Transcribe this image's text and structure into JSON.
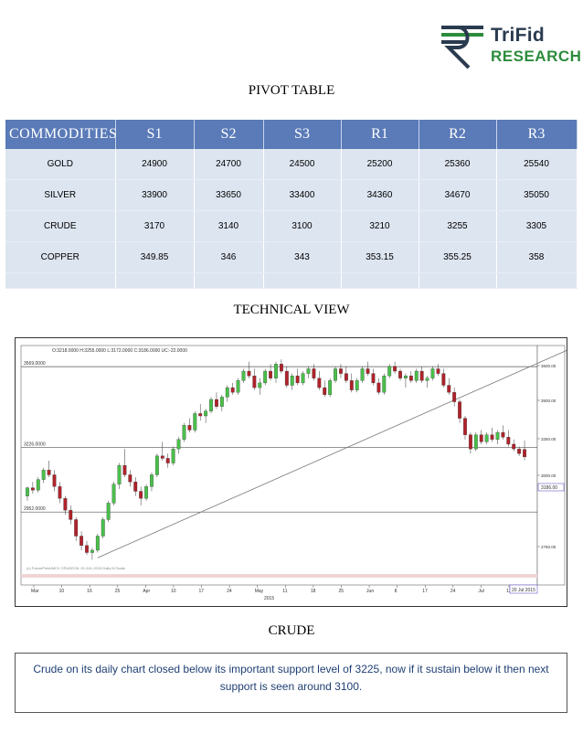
{
  "logo": {
    "line1": "TriFid",
    "line2": "RESEARCH"
  },
  "pivot_title": "PIVOT TABLE",
  "pivot": {
    "headers": [
      "COMMODITIES",
      "S1",
      "S2",
      "S3",
      "R1",
      "R2",
      "R3"
    ],
    "rows": [
      [
        "GOLD",
        "24900",
        "24700",
        "24500",
        "25200",
        "25360",
        "25540"
      ],
      [
        "SILVER",
        "33900",
        "33650",
        "33400",
        "34360",
        "34670",
        "35050"
      ],
      [
        "CRUDE",
        "3170",
        "3140",
        "3100",
        "3210",
        "3255",
        "3305"
      ],
      [
        "COPPER",
        "349.85",
        "346",
        "343",
        "353.15",
        "355.25",
        "358"
      ]
    ]
  },
  "technical_title": "TECHNICAL VIEW",
  "chart_data": {
    "type": "candlestick",
    "ohlc_header": "O:3218.0000 H:3255.0000 L:3172.0000 C:3186.0000 UC:-22.0000",
    "levels": [
      {
        "label": "3569.0000",
        "value": 3569
      },
      {
        "label": "3226.0000",
        "value": 3226
      },
      {
        "label": "2952.0000",
        "value": 2952
      }
    ],
    "last_price_label": "3186.00",
    "y_ticks": [
      "3600.00",
      "3500.00",
      "3250.00",
      "3000.00",
      "2750.00"
    ],
    "x_ticks": [
      "Mar",
      "10",
      "16",
      "25",
      "Apr",
      "10",
      "17",
      "24",
      "May",
      "11",
      "18",
      "25",
      "Jun",
      "8",
      "17",
      "24",
      "Jul",
      "13"
    ],
    "year_label": "2015",
    "date_label": "20 Jul 2015",
    "watermark": "(c) FuturePoint/MCX CRUDEOIL 20-JUL-2015 Daily M Scale",
    "up_color": "#49c04a",
    "down_color": "#b0222a",
    "ylim": [
      2720,
      3620
    ],
    "trendline": [
      {
        "i": 13,
        "v": 2758
      },
      {
        "i": 100,
        "v": 3640
      }
    ],
    "candles": [
      [
        3020,
        3060,
        3000,
        3055
      ],
      [
        3055,
        3080,
        3030,
        3045
      ],
      [
        3045,
        3100,
        3035,
        3090
      ],
      [
        3090,
        3140,
        3075,
        3130
      ],
      [
        3130,
        3170,
        3100,
        3110
      ],
      [
        3110,
        3130,
        3040,
        3060
      ],
      [
        3060,
        3080,
        2990,
        3010
      ],
      [
        3010,
        3020,
        2940,
        2960
      ],
      [
        2960,
        2980,
        2900,
        2920
      ],
      [
        2920,
        2930,
        2830,
        2850
      ],
      [
        2850,
        2870,
        2790,
        2810
      ],
      [
        2810,
        2830,
        2770,
        2780
      ],
      [
        2780,
        2800,
        2750,
        2790
      ],
      [
        2790,
        2860,
        2780,
        2850
      ],
      [
        2850,
        2930,
        2840,
        2920
      ],
      [
        2920,
        3000,
        2910,
        2990
      ],
      [
        2990,
        3080,
        2980,
        3070
      ],
      [
        3070,
        3160,
        3050,
        3150
      ],
      [
        3150,
        3220,
        3100,
        3110
      ],
      [
        3110,
        3130,
        3060,
        3080
      ],
      [
        3080,
        3100,
        3020,
        3040
      ],
      [
        3040,
        3060,
        2980,
        3010
      ],
      [
        3010,
        3070,
        3000,
        3060
      ],
      [
        3060,
        3120,
        3040,
        3110
      ],
      [
        3110,
        3200,
        3100,
        3190
      ],
      [
        3190,
        3250,
        3170,
        3180
      ],
      [
        3180,
        3200,
        3140,
        3160
      ],
      [
        3160,
        3230,
        3150,
        3220
      ],
      [
        3220,
        3270,
        3200,
        3260
      ],
      [
        3260,
        3330,
        3250,
        3320
      ],
      [
        3320,
        3350,
        3290,
        3300
      ],
      [
        3300,
        3380,
        3290,
        3370
      ],
      [
        3370,
        3410,
        3340,
        3360
      ],
      [
        3360,
        3390,
        3330,
        3380
      ],
      [
        3380,
        3440,
        3370,
        3430
      ],
      [
        3430,
        3460,
        3390,
        3400
      ],
      [
        3400,
        3450,
        3380,
        3440
      ],
      [
        3440,
        3490,
        3420,
        3480
      ],
      [
        3480,
        3500,
        3450,
        3460
      ],
      [
        3460,
        3520,
        3450,
        3510
      ],
      [
        3510,
        3560,
        3500,
        3550
      ],
      [
        3550,
        3590,
        3520,
        3530
      ],
      [
        3530,
        3560,
        3470,
        3480
      ],
      [
        3480,
        3520,
        3450,
        3500
      ],
      [
        3500,
        3560,
        3490,
        3550
      ],
      [
        3550,
        3580,
        3510,
        3520
      ],
      [
        3520,
        3590,
        3500,
        3580
      ],
      [
        3580,
        3600,
        3540,
        3550
      ],
      [
        3550,
        3570,
        3480,
        3490
      ],
      [
        3490,
        3540,
        3470,
        3530
      ],
      [
        3530,
        3560,
        3490,
        3500
      ],
      [
        3500,
        3550,
        3490,
        3540
      ],
      [
        3540,
        3570,
        3520,
        3560
      ],
      [
        3560,
        3580,
        3510,
        3520
      ],
      [
        3520,
        3550,
        3470,
        3480
      ],
      [
        3480,
        3510,
        3440,
        3450
      ],
      [
        3450,
        3520,
        3440,
        3510
      ],
      [
        3510,
        3570,
        3500,
        3560
      ],
      [
        3560,
        3580,
        3520,
        3540
      ],
      [
        3540,
        3570,
        3500,
        3510
      ],
      [
        3510,
        3540,
        3460,
        3470
      ],
      [
        3470,
        3520,
        3460,
        3510
      ],
      [
        3510,
        3570,
        3500,
        3560
      ],
      [
        3560,
        3590,
        3530,
        3540
      ],
      [
        3540,
        3560,
        3490,
        3500
      ],
      [
        3500,
        3520,
        3450,
        3460
      ],
      [
        3460,
        3540,
        3450,
        3530
      ],
      [
        3530,
        3580,
        3520,
        3570
      ],
      [
        3570,
        3590,
        3540,
        3550
      ],
      [
        3550,
        3560,
        3510,
        3520
      ],
      [
        3520,
        3540,
        3480,
        3530
      ],
      [
        3530,
        3550,
        3500,
        3510
      ],
      [
        3510,
        3560,
        3500,
        3550
      ],
      [
        3550,
        3570,
        3500,
        3510
      ],
      [
        3510,
        3530,
        3480,
        3520
      ],
      [
        3520,
        3570,
        3510,
        3560
      ],
      [
        3560,
        3580,
        3530,
        3540
      ],
      [
        3540,
        3560,
        3480,
        3490
      ],
      [
        3490,
        3520,
        3450,
        3460
      ],
      [
        3460,
        3480,
        3400,
        3420
      ],
      [
        3420,
        3430,
        3330,
        3350
      ],
      [
        3350,
        3360,
        3260,
        3280
      ],
      [
        3280,
        3290,
        3200,
        3220
      ],
      [
        3220,
        3290,
        3210,
        3280
      ],
      [
        3280,
        3300,
        3240,
        3250
      ],
      [
        3250,
        3290,
        3240,
        3280
      ],
      [
        3280,
        3310,
        3250,
        3260
      ],
      [
        3260,
        3300,
        3240,
        3290
      ],
      [
        3290,
        3320,
        3260,
        3270
      ],
      [
        3270,
        3300,
        3230,
        3240
      ],
      [
        3240,
        3260,
        3210,
        3220
      ],
      [
        3220,
        3230,
        3190,
        3200
      ],
      [
        3218,
        3255,
        3172,
        3186
      ]
    ]
  },
  "crude_title": "CRUDE",
  "crude_text": "Crude on its daily chart closed below its important support level of 3225, now if it sustain below it then next support is seen around 3100."
}
